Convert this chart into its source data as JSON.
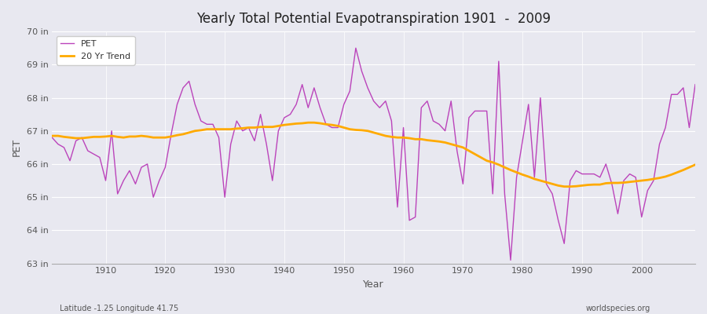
{
  "title": "Yearly Total Potential Evapotranspiration 1901  -  2009",
  "ylabel": "PET",
  "xlabel": "Year",
  "subtitle_left": "Latitude -1.25 Longitude 41.75",
  "subtitle_right": "worldspecies.org",
  "ylim": [
    63,
    70
  ],
  "xlim": [
    1901,
    2009
  ],
  "yticks": [
    63,
    64,
    65,
    66,
    67,
    68,
    69,
    70
  ],
  "ytick_labels": [
    "63 in",
    "64 in",
    "65 in",
    "66 in",
    "67 in",
    "68 in",
    "69 in",
    "70 in"
  ],
  "xticks": [
    1910,
    1920,
    1930,
    1940,
    1950,
    1960,
    1970,
    1980,
    1990,
    2000
  ],
  "pet_color": "#bb44bb",
  "trend_color": "#ffaa00",
  "background_color": "#e8e8f0",
  "pet_linewidth": 1.0,
  "trend_linewidth": 2.0,
  "years": [
    1901,
    1902,
    1903,
    1904,
    1905,
    1906,
    1907,
    1908,
    1909,
    1910,
    1911,
    1912,
    1913,
    1914,
    1915,
    1916,
    1917,
    1918,
    1919,
    1920,
    1921,
    1922,
    1923,
    1924,
    1925,
    1926,
    1927,
    1928,
    1929,
    1930,
    1931,
    1932,
    1933,
    1934,
    1935,
    1936,
    1937,
    1938,
    1939,
    1940,
    1941,
    1942,
    1943,
    1944,
    1945,
    1946,
    1947,
    1948,
    1949,
    1950,
    1951,
    1952,
    1953,
    1954,
    1955,
    1956,
    1957,
    1958,
    1959,
    1960,
    1961,
    1962,
    1963,
    1964,
    1965,
    1966,
    1967,
    1968,
    1969,
    1970,
    1971,
    1972,
    1973,
    1974,
    1975,
    1976,
    1977,
    1978,
    1979,
    1980,
    1981,
    1982,
    1983,
    1984,
    1985,
    1986,
    1987,
    1988,
    1989,
    1990,
    1991,
    1992,
    1993,
    1994,
    1995,
    1996,
    1997,
    1998,
    1999,
    2000,
    2001,
    2002,
    2003,
    2004,
    2005,
    2006,
    2007,
    2008,
    2009
  ],
  "pet_values": [
    66.8,
    66.6,
    66.5,
    66.1,
    66.7,
    66.8,
    66.4,
    66.3,
    66.2,
    65.5,
    67.0,
    65.1,
    65.5,
    65.8,
    65.4,
    65.9,
    66.0,
    65.0,
    65.5,
    65.9,
    66.9,
    67.8,
    68.3,
    68.5,
    67.8,
    67.3,
    67.2,
    67.2,
    66.8,
    65.0,
    66.6,
    67.3,
    67.0,
    67.1,
    66.7,
    67.5,
    66.6,
    65.5,
    67.0,
    67.4,
    67.5,
    67.8,
    68.4,
    67.7,
    68.3,
    67.7,
    67.2,
    67.1,
    67.1,
    67.8,
    68.2,
    69.5,
    68.8,
    68.3,
    67.9,
    67.7,
    67.9,
    67.3,
    64.7,
    67.1,
    64.3,
    64.4,
    67.7,
    67.9,
    67.3,
    67.2,
    67.0,
    67.9,
    66.4,
    65.4,
    67.4,
    67.6,
    67.6,
    67.6,
    65.1,
    69.1,
    65.1,
    63.1,
    65.6,
    66.7,
    67.8,
    65.6,
    68.0,
    65.4,
    65.1,
    64.3,
    63.6,
    65.5,
    65.8,
    65.7,
    65.7,
    65.7,
    65.6,
    66.0,
    65.4,
    64.5,
    65.5,
    65.7,
    65.6,
    64.4,
    65.2,
    65.5,
    66.6,
    67.1,
    68.1,
    68.1,
    68.3,
    67.1,
    68.4
  ],
  "trend_values": [
    66.85,
    66.85,
    66.82,
    66.8,
    66.78,
    66.78,
    66.8,
    66.82,
    66.82,
    66.83,
    66.85,
    66.82,
    66.8,
    66.83,
    66.83,
    66.85,
    66.83,
    66.8,
    66.8,
    66.8,
    66.83,
    66.87,
    66.9,
    66.95,
    67.0,
    67.02,
    67.05,
    67.05,
    67.05,
    67.05,
    67.05,
    67.07,
    67.08,
    67.1,
    67.1,
    67.12,
    67.12,
    67.12,
    67.15,
    67.18,
    67.2,
    67.22,
    67.23,
    67.25,
    67.25,
    67.23,
    67.2,
    67.18,
    67.15,
    67.1,
    67.05,
    67.03,
    67.02,
    67.0,
    66.95,
    66.9,
    66.85,
    66.82,
    66.8,
    66.8,
    66.78,
    66.75,
    66.75,
    66.72,
    66.7,
    66.68,
    66.65,
    66.6,
    66.55,
    66.5,
    66.4,
    66.3,
    66.2,
    66.1,
    66.05,
    65.98,
    65.9,
    65.82,
    65.75,
    65.68,
    65.62,
    65.55,
    65.5,
    65.45,
    65.4,
    65.35,
    65.32,
    65.32,
    65.33,
    65.35,
    65.37,
    65.38,
    65.38,
    65.42,
    65.43,
    65.43,
    65.44,
    65.46,
    65.48,
    65.5,
    65.52,
    65.55,
    65.58,
    65.62,
    65.68,
    65.75,
    65.82,
    65.9,
    65.98
  ]
}
